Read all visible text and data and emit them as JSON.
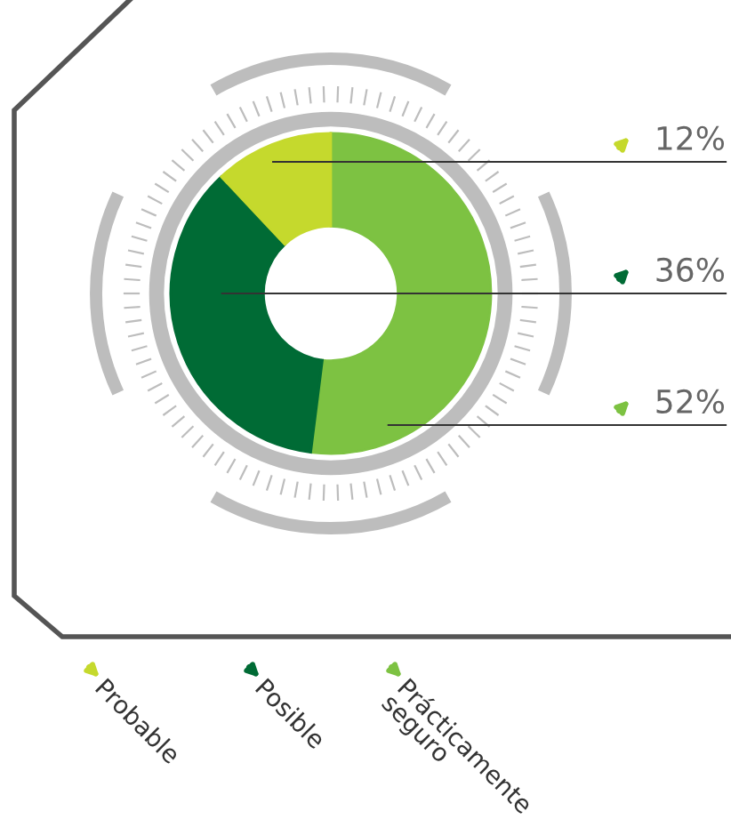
{
  "chart_data": {
    "type": "donut",
    "categories": [
      "Prácticamente seguro",
      "Posible",
      "Probable"
    ],
    "values": [
      52,
      36,
      12
    ],
    "colors": [
      "#7dc242",
      "#006b35",
      "#c5d92d"
    ],
    "value_labels": [
      "52%",
      "36%",
      "12%"
    ],
    "legend": "bottom"
  }
}
